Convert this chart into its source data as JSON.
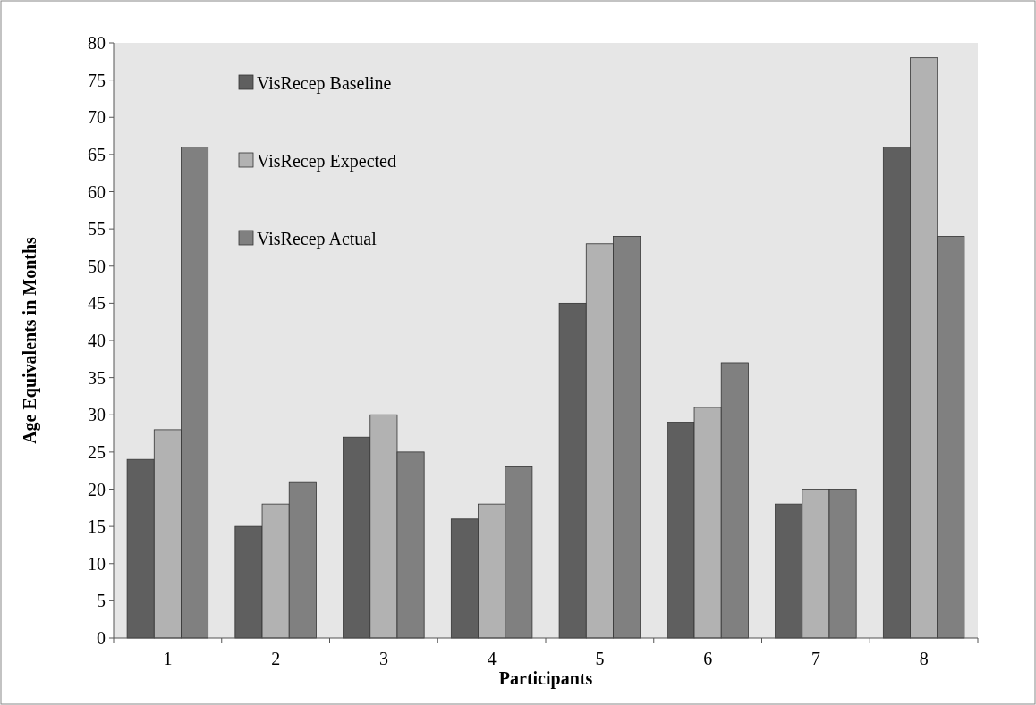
{
  "chart_data": {
    "type": "bar",
    "xlabel": "Participants",
    "ylabel": "Age Equivalents in Months",
    "categories": [
      "1",
      "2",
      "3",
      "4",
      "5",
      "6",
      "7",
      "8"
    ],
    "series": [
      {
        "name": "VisRecep Baseline",
        "color": "#5f5f5f",
        "values": [
          24,
          15,
          27,
          16,
          45,
          29,
          18,
          66
        ]
      },
      {
        "name": "VisRecep Expected",
        "color": "#b2b2b2",
        "values": [
          28,
          18,
          30,
          18,
          53,
          31,
          20,
          78
        ]
      },
      {
        "name": "VisRecep Actual",
        "color": "#808080",
        "values": [
          66,
          21,
          25,
          23,
          54,
          37,
          20,
          54
        ]
      }
    ],
    "ylim": [
      0,
      80
    ],
    "yticks": [
      0,
      5,
      10,
      15,
      20,
      25,
      30,
      35,
      40,
      45,
      50,
      55,
      60,
      65,
      70,
      75,
      80
    ],
    "grid": false,
    "legend": "top left"
  }
}
